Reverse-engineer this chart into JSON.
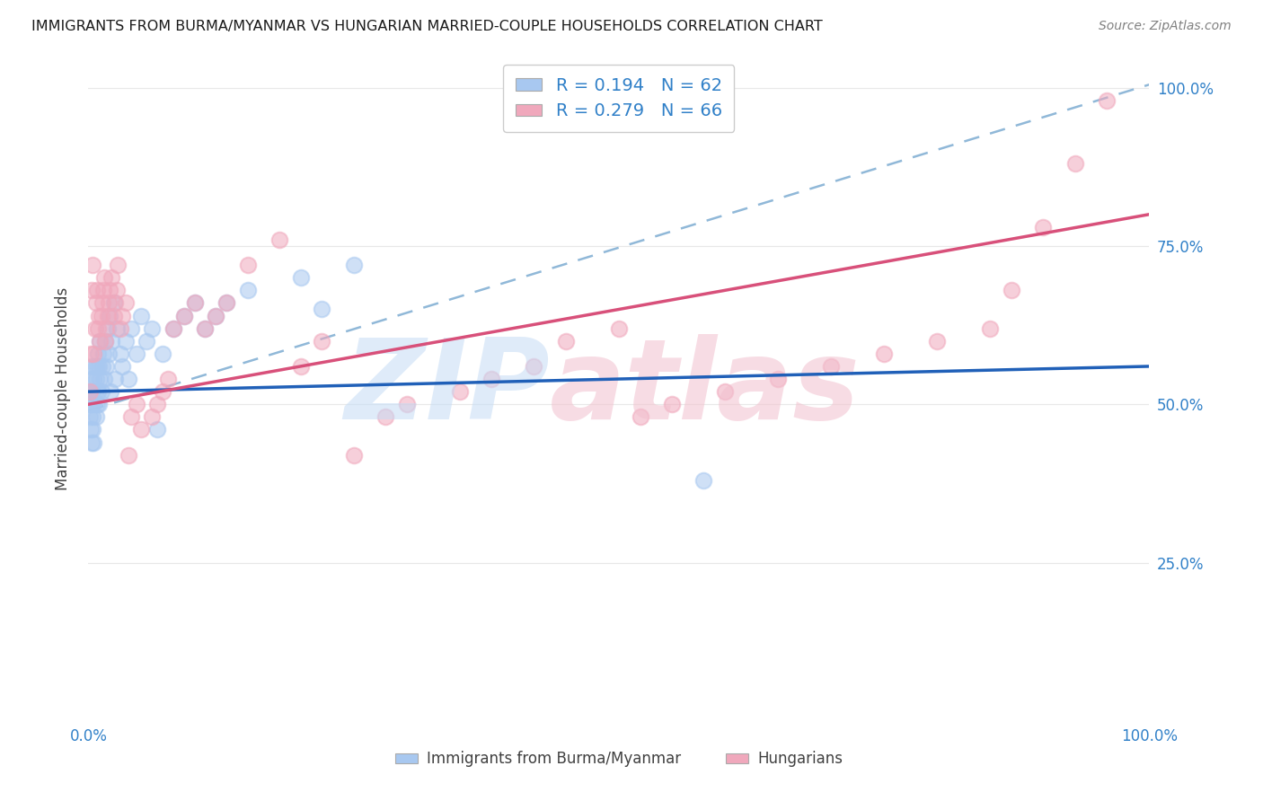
{
  "title": "IMMIGRANTS FROM BURMA/MYANMAR VS HUNGARIAN MARRIED-COUPLE HOUSEHOLDS CORRELATION CHART",
  "source": "Source: ZipAtlas.com",
  "ylabel": "Married-couple Households",
  "blue_R": 0.194,
  "blue_N": 62,
  "pink_R": 0.279,
  "pink_N": 66,
  "blue_color": "#A8C8F0",
  "pink_color": "#F0A8BC",
  "blue_line_color": "#2060B8",
  "pink_line_color": "#D8507A",
  "dashed_line_color": "#90B8D8",
  "grid_color": "#E8E8E8",
  "background_color": "#FFFFFF",
  "title_color": "#1A1A1A",
  "source_color": "#808080",
  "axis_tick_color": "#3080C8",
  "ylabel_color": "#404040",
  "legend_text_color": "#3080C8",
  "bottom_legend_color": "#404040",
  "blue_x": [
    0.001,
    0.001,
    0.002,
    0.002,
    0.002,
    0.003,
    0.003,
    0.003,
    0.004,
    0.004,
    0.004,
    0.005,
    0.005,
    0.005,
    0.006,
    0.006,
    0.007,
    0.007,
    0.008,
    0.008,
    0.009,
    0.009,
    0.01,
    0.01,
    0.011,
    0.011,
    0.012,
    0.013,
    0.014,
    0.015,
    0.016,
    0.017,
    0.018,
    0.019,
    0.02,
    0.021,
    0.022,
    0.024,
    0.025,
    0.027,
    0.03,
    0.032,
    0.035,
    0.038,
    0.04,
    0.045,
    0.05,
    0.055,
    0.06,
    0.065,
    0.07,
    0.08,
    0.09,
    0.1,
    0.11,
    0.12,
    0.13,
    0.15,
    0.2,
    0.22,
    0.25,
    0.58
  ],
  "blue_y": [
    0.5,
    0.48,
    0.52,
    0.46,
    0.54,
    0.5,
    0.44,
    0.56,
    0.48,
    0.52,
    0.46,
    0.5,
    0.54,
    0.44,
    0.52,
    0.56,
    0.48,
    0.54,
    0.5,
    0.56,
    0.52,
    0.58,
    0.5,
    0.56,
    0.54,
    0.6,
    0.52,
    0.56,
    0.58,
    0.54,
    0.6,
    0.56,
    0.62,
    0.58,
    0.64,
    0.52,
    0.6,
    0.66,
    0.54,
    0.62,
    0.58,
    0.56,
    0.6,
    0.54,
    0.62,
    0.58,
    0.64,
    0.6,
    0.62,
    0.46,
    0.58,
    0.62,
    0.64,
    0.66,
    0.62,
    0.64,
    0.66,
    0.68,
    0.7,
    0.65,
    0.72,
    0.38
  ],
  "pink_x": [
    0.001,
    0.002,
    0.003,
    0.004,
    0.005,
    0.006,
    0.007,
    0.008,
    0.009,
    0.01,
    0.011,
    0.012,
    0.013,
    0.014,
    0.015,
    0.016,
    0.017,
    0.018,
    0.019,
    0.02,
    0.022,
    0.024,
    0.025,
    0.027,
    0.028,
    0.03,
    0.032,
    0.035,
    0.038,
    0.04,
    0.045,
    0.05,
    0.06,
    0.065,
    0.07,
    0.075,
    0.08,
    0.09,
    0.1,
    0.11,
    0.12,
    0.13,
    0.15,
    0.18,
    0.2,
    0.22,
    0.25,
    0.28,
    0.3,
    0.35,
    0.38,
    0.42,
    0.45,
    0.5,
    0.52,
    0.55,
    0.6,
    0.65,
    0.7,
    0.75,
    0.8,
    0.85,
    0.87,
    0.9,
    0.93,
    0.96
  ],
  "pink_y": [
    0.52,
    0.58,
    0.68,
    0.72,
    0.58,
    0.62,
    0.66,
    0.68,
    0.62,
    0.64,
    0.6,
    0.64,
    0.66,
    0.68,
    0.7,
    0.6,
    0.62,
    0.64,
    0.66,
    0.68,
    0.7,
    0.64,
    0.66,
    0.68,
    0.72,
    0.62,
    0.64,
    0.66,
    0.42,
    0.48,
    0.5,
    0.46,
    0.48,
    0.5,
    0.52,
    0.54,
    0.62,
    0.64,
    0.66,
    0.62,
    0.64,
    0.66,
    0.72,
    0.76,
    0.56,
    0.6,
    0.42,
    0.48,
    0.5,
    0.52,
    0.54,
    0.56,
    0.6,
    0.62,
    0.48,
    0.5,
    0.52,
    0.54,
    0.56,
    0.58,
    0.6,
    0.62,
    0.68,
    0.78,
    0.88,
    0.98
  ],
  "blue_line": [
    0.0,
    0.52,
    1.0,
    0.56
  ],
  "pink_line": [
    0.0,
    0.5,
    1.0,
    0.8
  ],
  "dash_line": [
    0.0,
    0.49,
    1.0,
    1.005
  ],
  "xlim": [
    0.0,
    1.0
  ],
  "ylim": [
    0.0,
    1.05
  ],
  "yticks": [
    0.25,
    0.5,
    0.75,
    1.0
  ],
  "ytick_labels": [
    "25.0%",
    "50.0%",
    "75.0%",
    "100.0%"
  ]
}
